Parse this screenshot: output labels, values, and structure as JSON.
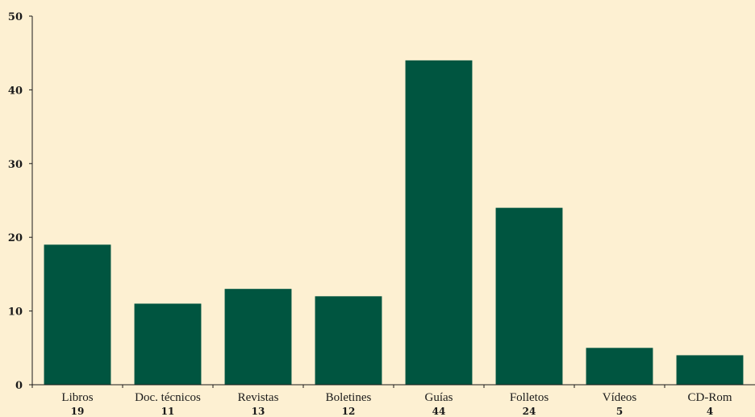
{
  "chart_data": {
    "type": "bar",
    "categories": [
      "Libros",
      "Doc. técnicos",
      "Revistas",
      "Boletines",
      "Guías",
      "Folletos",
      "Vídeos",
      "CD-Rom"
    ],
    "values": [
      19,
      11,
      13,
      12,
      44,
      24,
      5,
      4
    ],
    "value_labels": [
      "19",
      "11",
      "13",
      "12",
      "44",
      "24",
      "5",
      "4"
    ],
    "yticks": [
      0,
      10,
      20,
      30,
      40,
      50
    ],
    "ylim": [
      0,
      50
    ],
    "grid": false,
    "legend": "none",
    "colors": {
      "bar": "#005540",
      "background": "#fdf0d2",
      "axis": "#1a1a1a"
    }
  }
}
